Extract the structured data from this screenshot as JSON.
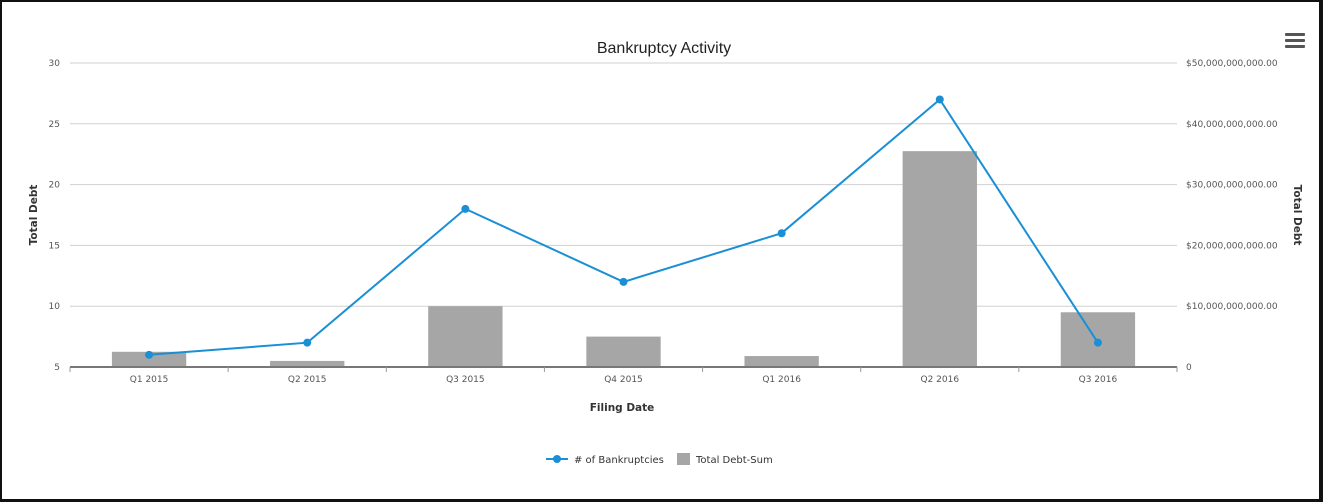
{
  "chart_data": {
    "type": "bar+line",
    "title": "Bankruptcy Activity",
    "xlabel": "Filing Date",
    "ylabel_left": "Total Debt",
    "ylabel_right": "Total Debt",
    "categories": [
      "Q1 2015",
      "Q2 2015",
      "Q3 2015",
      "Q4 2015",
      "Q1 2016",
      "Q2 2016",
      "Q3 2016"
    ],
    "left_axis": {
      "min": 5,
      "max": 30,
      "ticks": [
        5,
        10,
        15,
        20,
        25,
        30
      ],
      "tick_labels": [
        "5",
        "10",
        "15",
        "20",
        "25",
        "30"
      ]
    },
    "right_axis": {
      "min": 0,
      "max": 50000000000,
      "ticks": [
        0,
        10000000000,
        20000000000,
        30000000000,
        40000000000,
        50000000000
      ],
      "tick_labels": [
        "0",
        "$10,000,000,000.00",
        "$20,000,000,000.00",
        "$30,000,000,000.00",
        "$40,000,000,000.00",
        "$50,000,000,000.00"
      ]
    },
    "series": [
      {
        "name": "# of Bankruptcies",
        "kind": "line",
        "axis": "left",
        "color": "#1a8fd6",
        "values": [
          6,
          7,
          18,
          12,
          16,
          27,
          7
        ]
      },
      {
        "name": "Total Debt-Sum",
        "kind": "bar",
        "axis": "right",
        "color": "#a6a6a6",
        "values": [
          2500000000,
          1000000000,
          10000000000,
          5000000000,
          1800000000,
          35500000000,
          9000000000
        ]
      }
    ],
    "grid": true,
    "legend_position": "bottom-center"
  },
  "toolbar": {
    "menu_icon": "hamburger-menu-icon"
  }
}
